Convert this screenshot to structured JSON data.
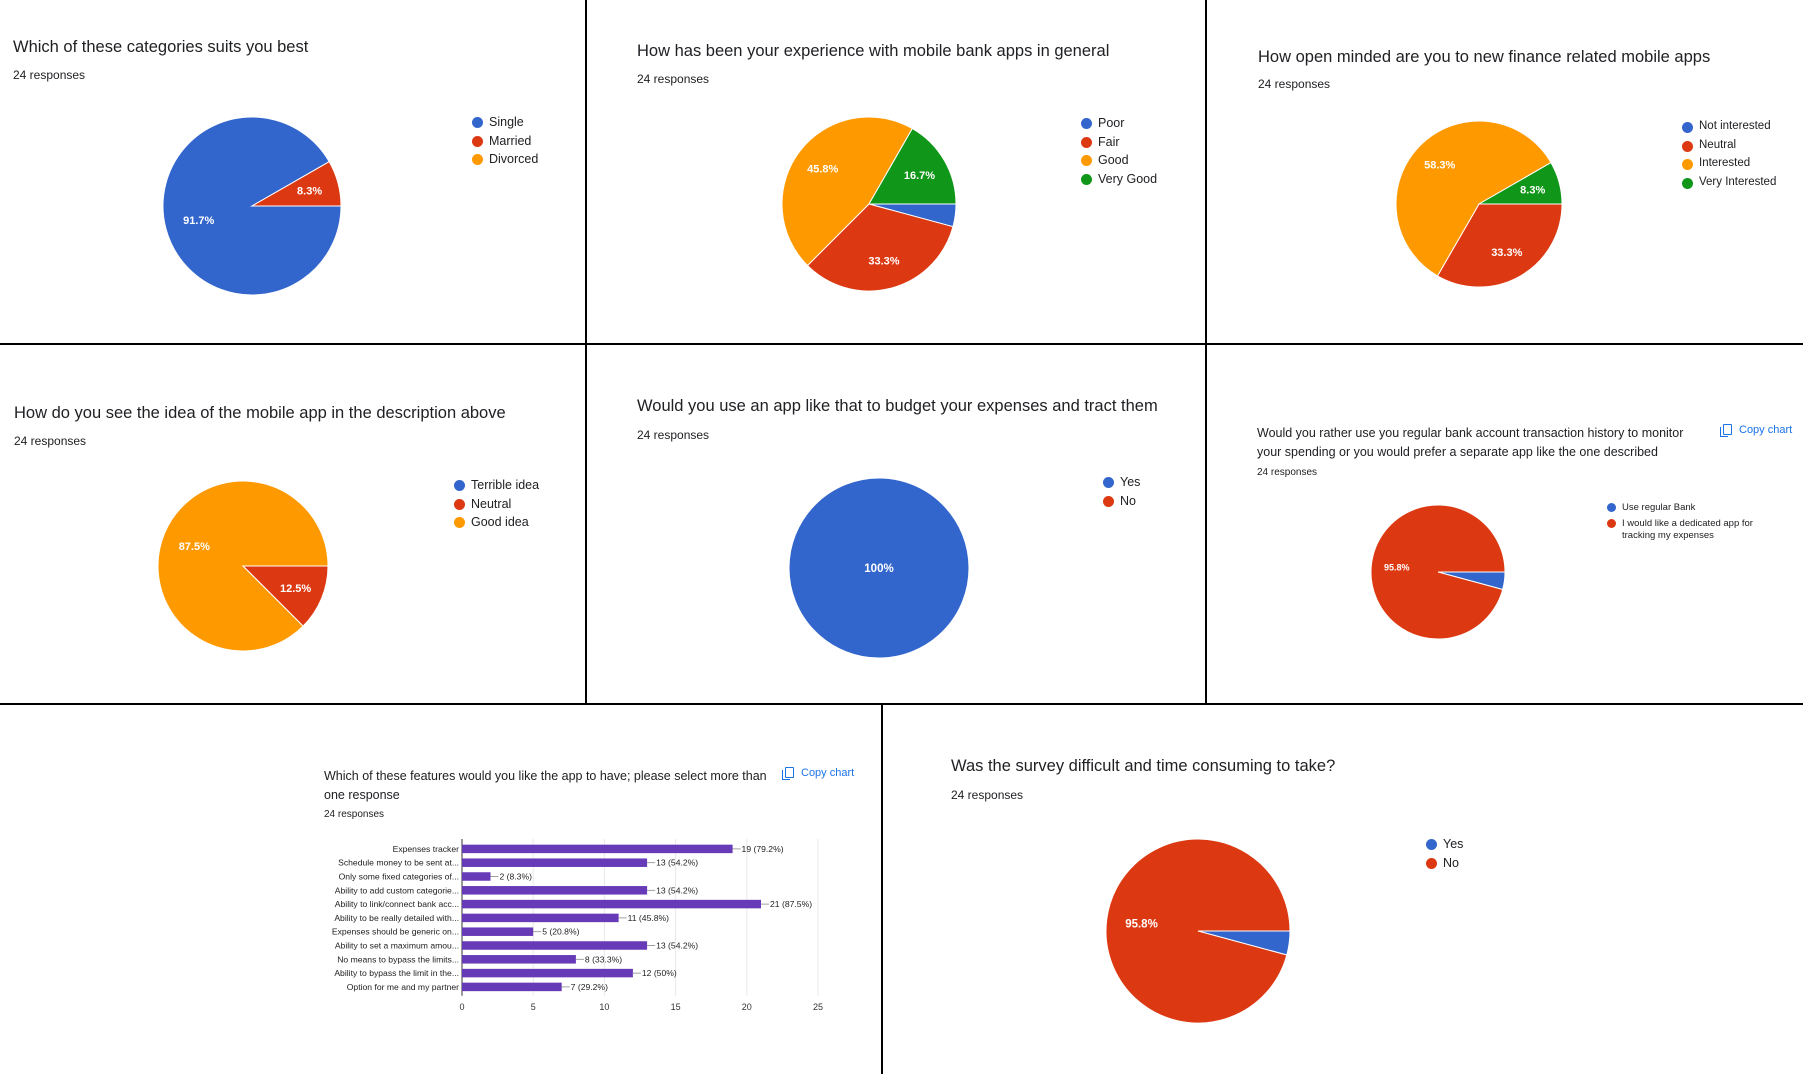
{
  "colors": {
    "blue": "#3366cc",
    "red": "#dc3912",
    "orange": "#ff9900",
    "green": "#109618",
    "purple": "#673ab7"
  },
  "copy_chart_label": "Copy chart",
  "chart_data": [
    {
      "id": "p1",
      "type": "pie",
      "title": "Which of these categories suits you best",
      "responses": "24 responses",
      "labels": [
        "Single",
        "Married",
        "Divorced"
      ],
      "values": [
        91.7,
        8.3,
        0
      ],
      "slice_labels": [
        "91.7%",
        "8.3%",
        ""
      ]
    },
    {
      "id": "p2",
      "type": "pie",
      "title": "How has been your experience with mobile bank apps in general",
      "responses": "24 responses",
      "labels": [
        "Poor",
        "Fair",
        "Good",
        "Very Good"
      ],
      "values": [
        4.2,
        33.3,
        45.8,
        16.7
      ],
      "slice_labels": [
        "",
        "33.3%",
        "45.8%",
        "16.7%"
      ]
    },
    {
      "id": "p3",
      "type": "pie",
      "title": "How open minded are you to new finance related mobile apps",
      "responses": "24 responses",
      "labels": [
        "Not interested",
        "Neutral",
        "Interested",
        "Very Interested"
      ],
      "values": [
        0,
        33.3,
        58.3,
        8.3
      ],
      "slice_labels": [
        "",
        "33.3%",
        "58.3%",
        "8.3%"
      ]
    },
    {
      "id": "p4",
      "type": "pie",
      "title": "How do you see the idea of the mobile app in the description above",
      "responses": "24 responses",
      "labels": [
        "Terrible idea",
        "Neutral",
        "Good idea"
      ],
      "values": [
        0,
        12.5,
        87.5
      ],
      "slice_labels": [
        "",
        "12.5%",
        "87.5%"
      ]
    },
    {
      "id": "p5",
      "type": "pie",
      "title": "Would you use an app like that to budget your expenses and tract them",
      "responses": "24 responses",
      "labels": [
        "Yes",
        "No"
      ],
      "values": [
        100,
        0
      ],
      "slice_labels": [
        "100%",
        ""
      ]
    },
    {
      "id": "p6",
      "type": "pie",
      "title": "Would you rather use you regular bank account transaction history to monitor your spending or you would prefer a separate app like the one described",
      "responses": "24 responses",
      "labels": [
        "Use regular Bank",
        "I would like a dedicated app for tracking my expenses"
      ],
      "values": [
        4.2,
        95.8
      ],
      "slice_labels": [
        "",
        "95.8%"
      ]
    },
    {
      "id": "b1",
      "type": "bar",
      "orientation": "horizontal",
      "title": "Which of these features would you like the app to have; please select more than one response",
      "responses": "24 responses",
      "categories": [
        "Expenses tracker",
        "Schedule money to be sent at...",
        "Only some fixed categories of...",
        "Ability to add custom categorie...",
        "Ability to link/connect bank acc...",
        "Ability to be really detailed with...",
        "Expenses should be generic on...",
        "Ability to set a maximum amou...",
        "No means to bypass the limits...",
        "Ability to bypass the limit in the...",
        "Option for me and my partner"
      ],
      "values": [
        19,
        13,
        2,
        13,
        21,
        11,
        5,
        13,
        8,
        12,
        7
      ],
      "data_labels": [
        "19 (79.2%)",
        "13 (54.2%)",
        "2 (8.3%)",
        "13 (54.2%)",
        "21 (87.5%)",
        "11 (45.8%)",
        "5 (20.8%)",
        "13 (54.2%)",
        "8 (33.3%)",
        "12 (50%)",
        "7 (29.2%)"
      ],
      "xticks": [
        "0",
        "5",
        "10",
        "15",
        "20",
        "25"
      ],
      "xlim": [
        0,
        25
      ]
    },
    {
      "id": "p7",
      "type": "pie",
      "title": "Was the survey difficult and time consuming to take?",
      "responses": "24 responses",
      "labels": [
        "Yes",
        "No"
      ],
      "values": [
        4.2,
        95.8
      ],
      "slice_labels": [
        "",
        "95.8%"
      ]
    }
  ]
}
